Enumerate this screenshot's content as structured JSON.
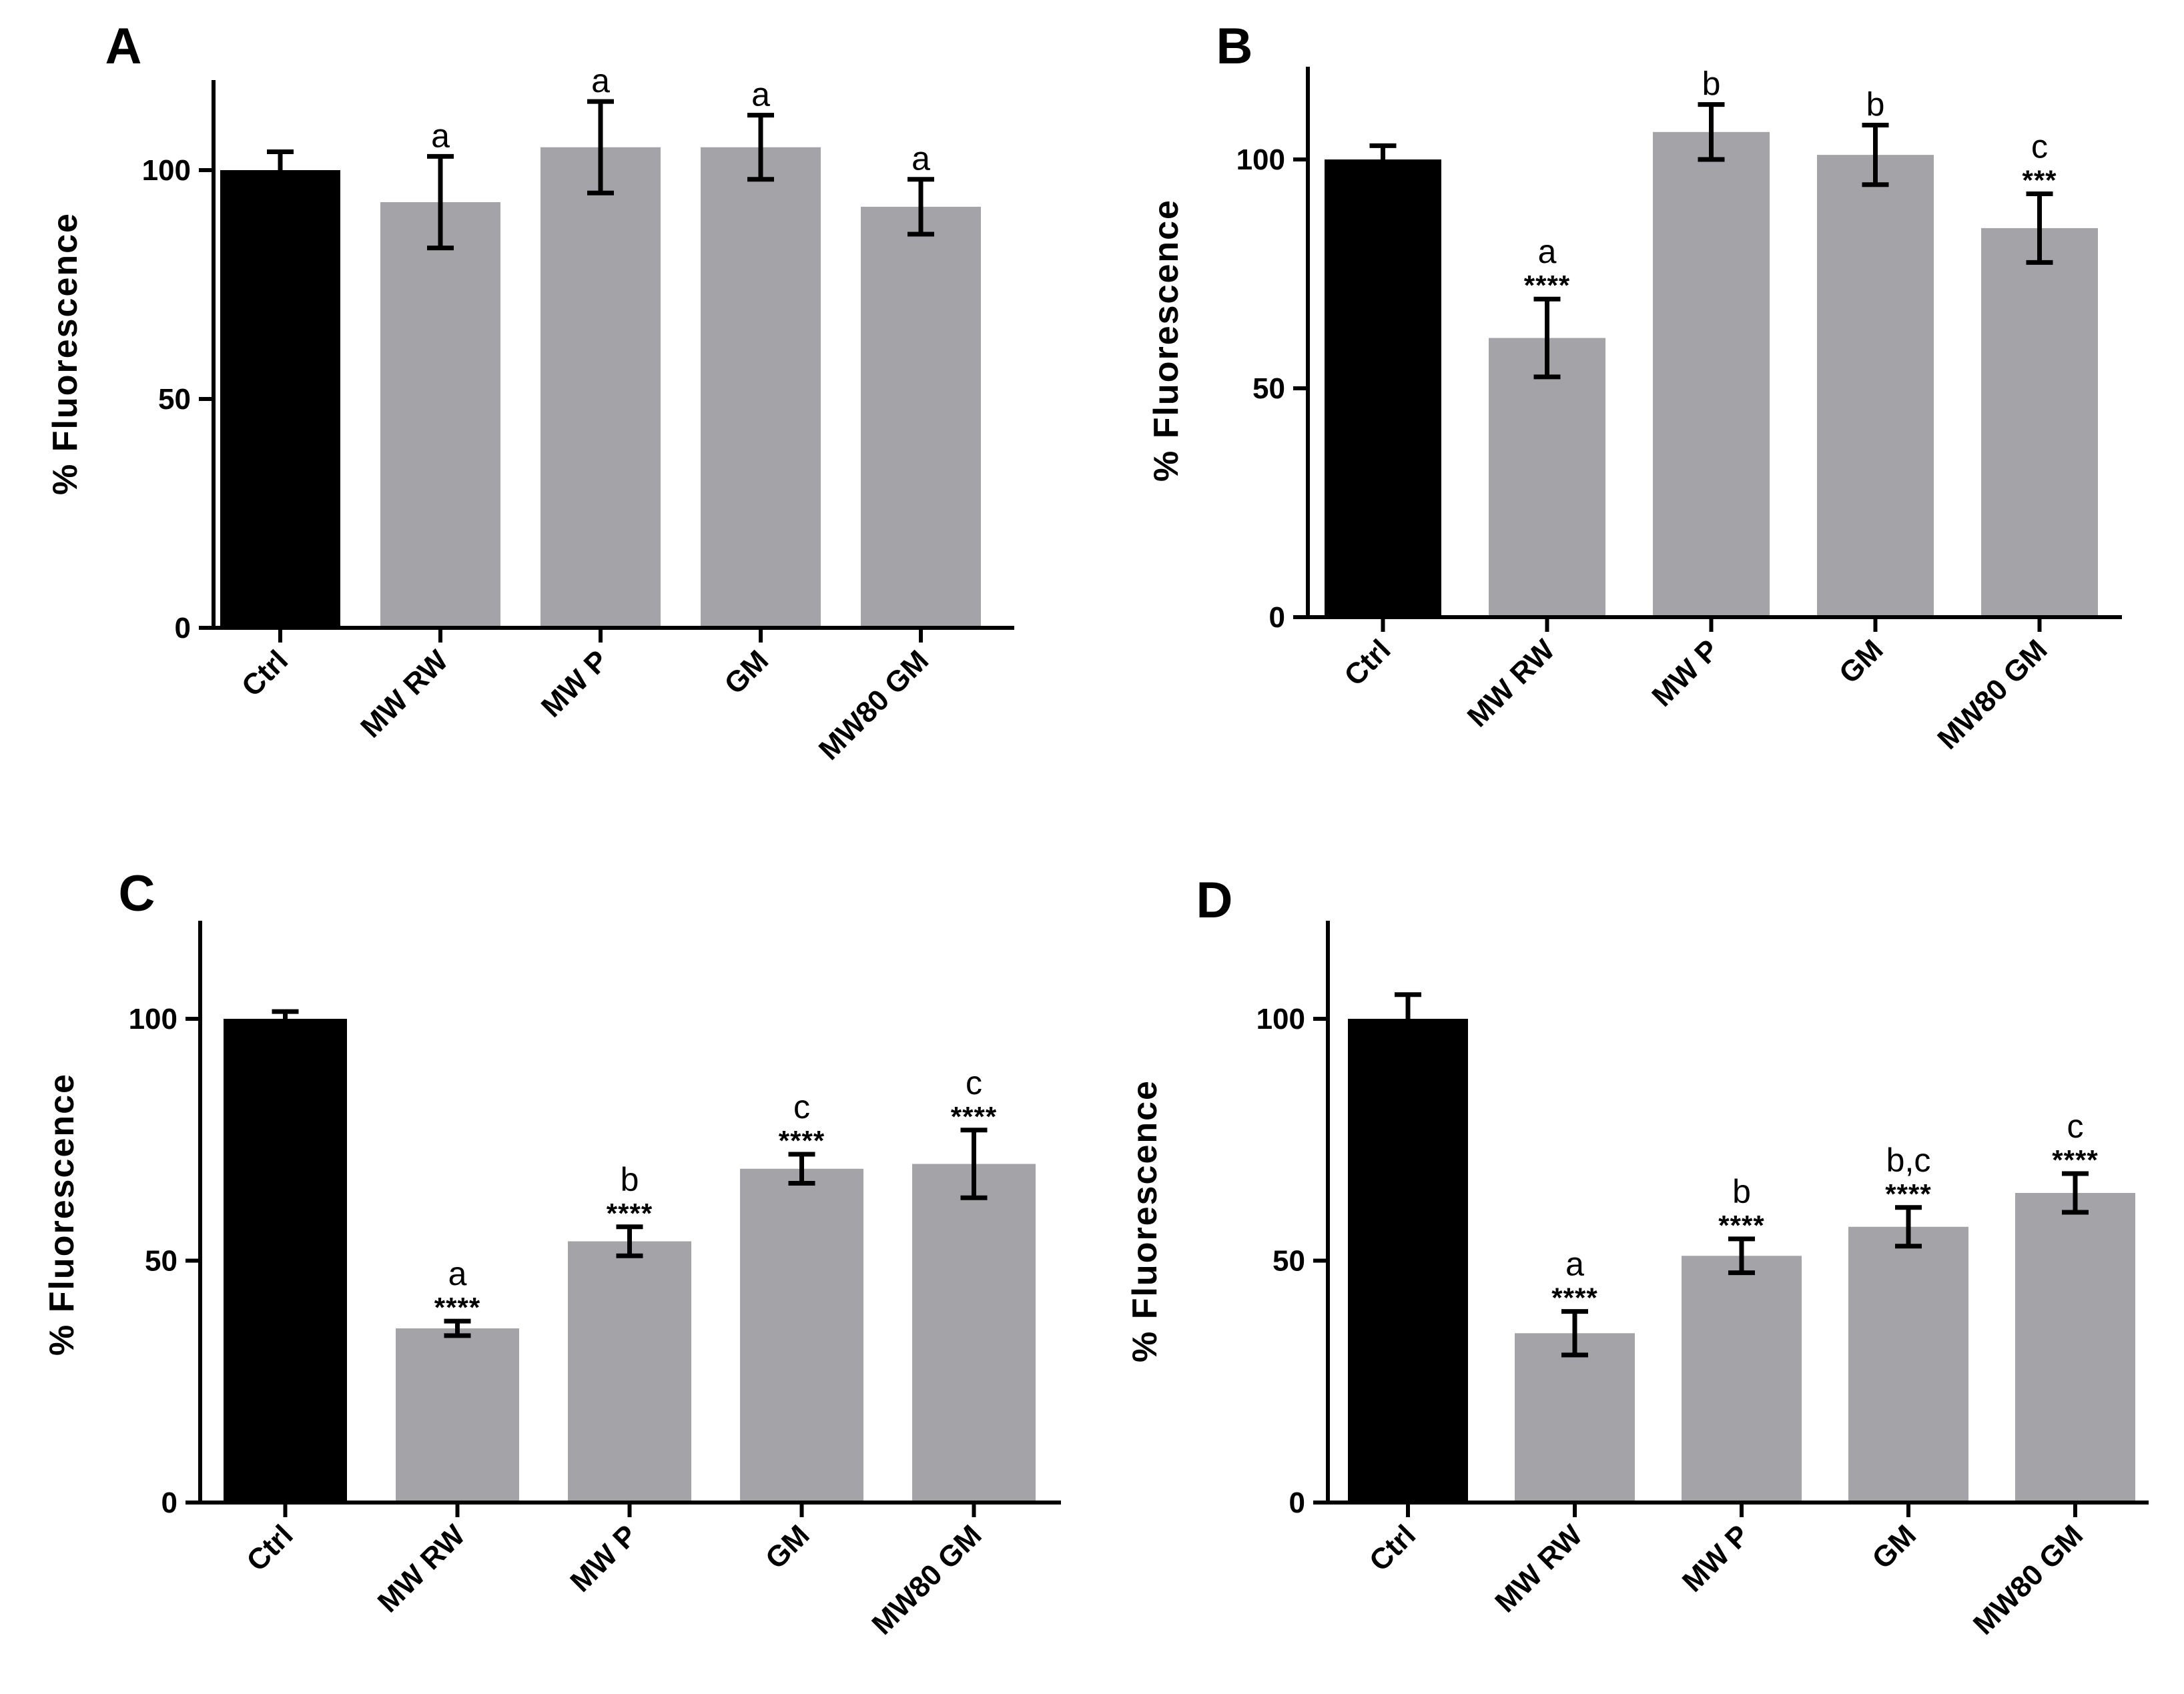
{
  "colors": {
    "control": "#000000",
    "treatment": "#a3a3a8",
    "axis": "#000000"
  },
  "chart_data": [
    {
      "panel": "A",
      "type": "bar",
      "ylabel": "% Fluorescence",
      "ylim": [
        0,
        120
      ],
      "yticks": [
        0,
        50,
        100
      ],
      "categories": [
        "Ctrl",
        "MW RW",
        "MW P",
        "GM",
        "MW80 GM"
      ],
      "values": [
        100,
        93,
        105,
        105,
        92
      ],
      "errors": [
        4,
        10,
        10,
        7,
        6
      ],
      "letters": [
        "",
        "a",
        "a",
        "a",
        "a"
      ],
      "significance": [
        "",
        "",
        "",
        "",
        ""
      ]
    },
    {
      "panel": "B",
      "type": "bar",
      "ylabel": "% Fluorescence",
      "ylim": [
        0,
        120
      ],
      "yticks": [
        0,
        50,
        100
      ],
      "categories": [
        "Ctrl",
        "MW RW",
        "MW P",
        "GM",
        "MW80 GM"
      ],
      "values": [
        100,
        61,
        106,
        101,
        85
      ],
      "errors": [
        3,
        8.5,
        6,
        6.5,
        7.5
      ],
      "letters": [
        "",
        "a",
        "b",
        "b",
        "c"
      ],
      "significance": [
        "",
        "****",
        "",
        "",
        "***"
      ]
    },
    {
      "panel": "C",
      "type": "bar",
      "ylabel": "% Fluorescence",
      "ylim": [
        0,
        120
      ],
      "yticks": [
        0,
        50,
        100
      ],
      "categories": [
        "Ctrl",
        "MW RW",
        "MW P",
        "GM",
        "MW80 GM"
      ],
      "values": [
        100,
        36,
        54,
        69,
        70
      ],
      "errors": [
        1.5,
        1.5,
        3,
        3,
        7
      ],
      "letters": [
        "",
        "a",
        "b",
        "c",
        "c"
      ],
      "significance": [
        "",
        "****",
        "****",
        "****",
        "****"
      ]
    },
    {
      "panel": "D",
      "type": "bar",
      "ylabel": "% Fluorescence",
      "ylim": [
        0,
        120
      ],
      "yticks": [
        0,
        50,
        100
      ],
      "categories": [
        "Ctrl",
        "MW RW",
        "MW P",
        "GM",
        "MW80 GM"
      ],
      "values": [
        100,
        35,
        51,
        57,
        64
      ],
      "errors": [
        5,
        4.5,
        3.5,
        4,
        4
      ],
      "letters": [
        "",
        "a",
        "b",
        "b,c",
        "c"
      ],
      "significance": [
        "",
        "****",
        "****",
        "****",
        "****"
      ]
    }
  ]
}
